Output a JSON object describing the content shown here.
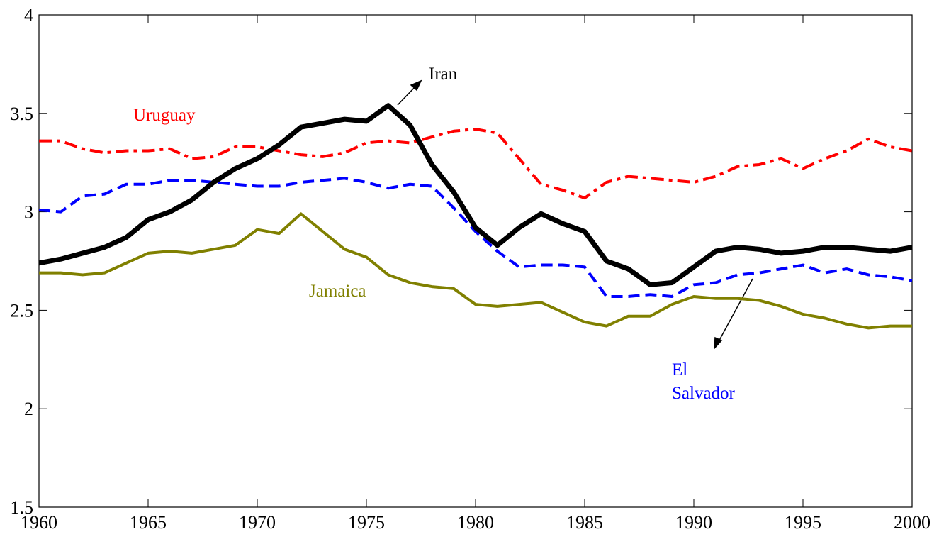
{
  "chart_data": {
    "type": "line",
    "x": [
      1960,
      1961,
      1962,
      1963,
      1964,
      1965,
      1966,
      1967,
      1968,
      1969,
      1970,
      1971,
      1972,
      1973,
      1974,
      1975,
      1976,
      1977,
      1978,
      1979,
      1980,
      1981,
      1982,
      1983,
      1984,
      1985,
      1986,
      1987,
      1988,
      1989,
      1990,
      1991,
      1992,
      1993,
      1994,
      1995,
      1996,
      1997,
      1998,
      1999,
      2000
    ],
    "xlim": [
      1960,
      2000
    ],
    "xticks": [
      1960,
      1965,
      1970,
      1975,
      1980,
      1985,
      1990,
      1995,
      2000
    ],
    "ylim": [
      1.5,
      4
    ],
    "yticks": [
      1.5,
      2,
      2.5,
      3,
      3.5,
      4
    ],
    "series": [
      {
        "name": "Uruguay",
        "color": "#ff0000",
        "linestyle": "dashdot",
        "linewidth": 4,
        "values": [
          3.36,
          3.36,
          3.32,
          3.3,
          3.31,
          3.31,
          3.32,
          3.27,
          3.28,
          3.33,
          3.33,
          3.31,
          3.29,
          3.28,
          3.3,
          3.35,
          3.36,
          3.35,
          3.38,
          3.41,
          3.42,
          3.4,
          3.27,
          3.14,
          3.11,
          3.07,
          3.15,
          3.18,
          3.17,
          3.16,
          3.15,
          3.18,
          3.23,
          3.24,
          3.27,
          3.22,
          3.27,
          3.31,
          3.37,
          3.33,
          3.31
        ]
      },
      {
        "name": "El Salvador",
        "color": "#0000ff",
        "linestyle": "dashed",
        "linewidth": 4,
        "values": [
          3.01,
          3.0,
          3.08,
          3.09,
          3.14,
          3.14,
          3.16,
          3.16,
          3.15,
          3.14,
          3.13,
          3.13,
          3.15,
          3.16,
          3.17,
          3.15,
          3.12,
          3.14,
          3.13,
          3.02,
          2.9,
          2.8,
          2.72,
          2.73,
          2.73,
          2.72,
          2.57,
          2.57,
          2.58,
          2.57,
          2.63,
          2.64,
          2.68,
          2.69,
          2.71,
          2.73,
          2.69,
          2.71,
          2.68,
          2.67,
          2.65
        ]
      },
      {
        "name": "Jamaica",
        "color": "#808000",
        "linestyle": "solid",
        "linewidth": 4,
        "values": [
          2.69,
          2.69,
          2.68,
          2.69,
          2.74,
          2.79,
          2.8,
          2.79,
          2.81,
          2.83,
          2.91,
          2.89,
          2.99,
          2.9,
          2.81,
          2.77,
          2.68,
          2.64,
          2.62,
          2.61,
          2.53,
          2.52,
          2.53,
          2.54,
          2.49,
          2.44,
          2.42,
          2.47,
          2.47,
          2.53,
          2.57,
          2.56,
          2.56,
          2.55,
          2.52,
          2.48,
          2.46,
          2.43,
          2.41,
          2.42,
          2.42
        ]
      },
      {
        "name": "Iran",
        "color": "#000000",
        "linestyle": "solid",
        "linewidth": 7,
        "values": [
          2.74,
          2.76,
          2.79,
          2.82,
          2.87,
          2.96,
          3.0,
          3.06,
          3.15,
          3.22,
          3.27,
          3.34,
          3.43,
          3.45,
          3.47,
          3.46,
          3.54,
          3.44,
          3.24,
          3.1,
          2.92,
          2.83,
          2.92,
          2.99,
          2.94,
          2.9,
          2.75,
          2.71,
          2.63,
          2.64,
          2.72,
          2.8,
          2.82,
          2.81,
          2.79,
          2.8,
          2.82,
          2.82,
          2.81,
          2.8,
          2.82
        ]
      }
    ]
  }
}
